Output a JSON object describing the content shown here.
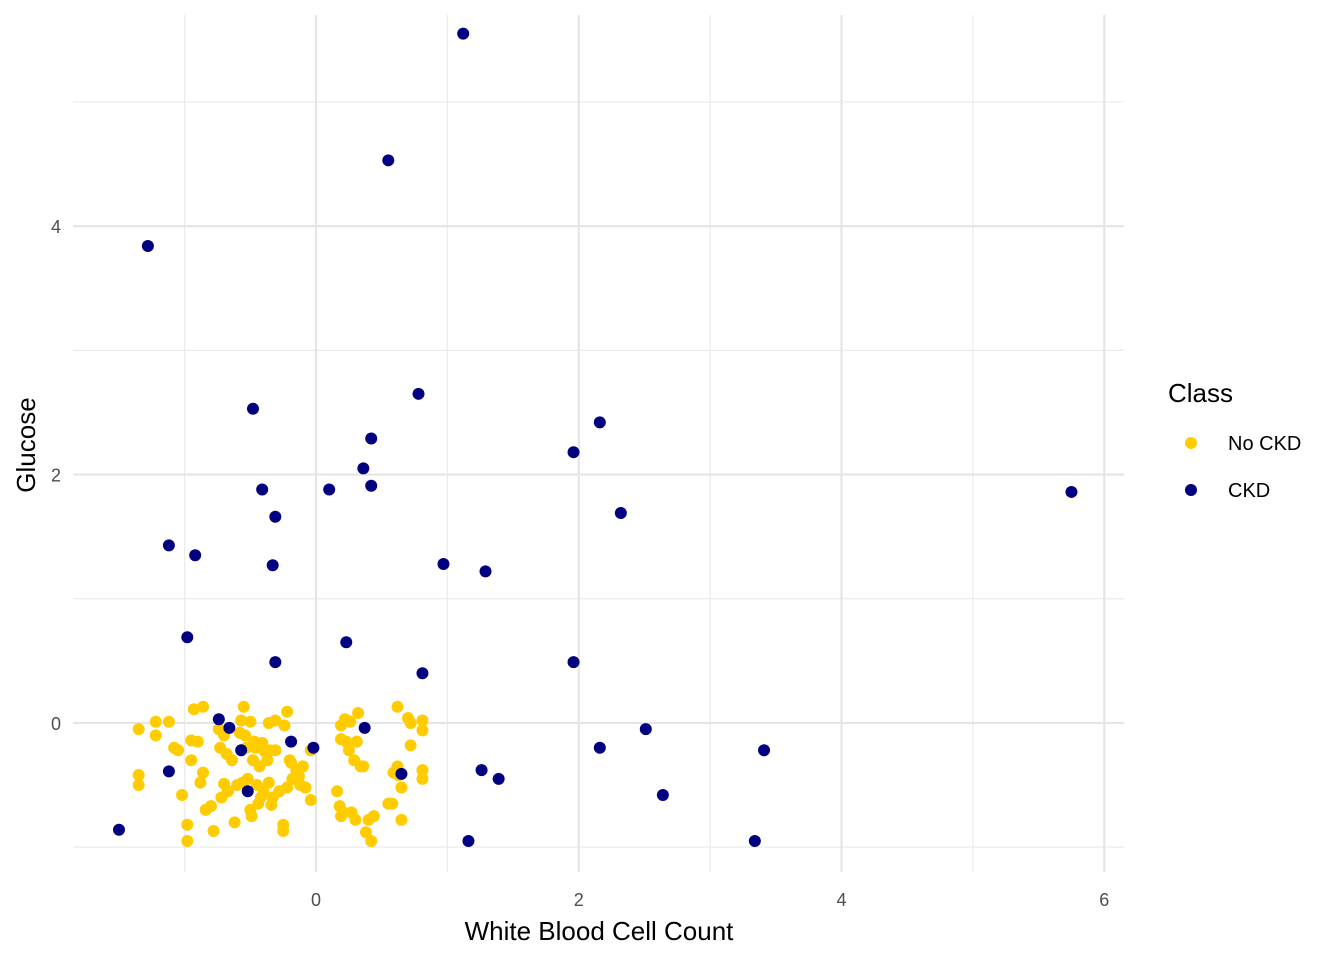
{
  "chart_data": {
    "type": "scatter",
    "title": "",
    "xlabel": "White Blood Cell Count",
    "ylabel": "Glucose",
    "xlim": [
      -1.85,
      6.15
    ],
    "ylim": [
      -1.2,
      5.7
    ],
    "x_ticks": [
      0,
      2,
      4,
      6
    ],
    "x_tick_labels": [
      "0",
      "2",
      "4",
      "6"
    ],
    "y_ticks": [
      0,
      2,
      4
    ],
    "y_tick_labels": [
      "0",
      "2",
      "4"
    ],
    "grid": true,
    "legend": {
      "title": "Class",
      "placement": "right"
    },
    "series": [
      {
        "name": "No CKD",
        "color": "#FFCC00",
        "points": [
          [
            -1.35,
            -0.05
          ],
          [
            -1.35,
            -0.42
          ],
          [
            -1.35,
            -0.5
          ],
          [
            -1.22,
            0.01
          ],
          [
            -1.22,
            -0.1
          ],
          [
            -1.12,
            0.01
          ],
          [
            -1.08,
            -0.2
          ],
          [
            -1.05,
            -0.22
          ],
          [
            -1.02,
            -0.58
          ],
          [
            -0.98,
            -0.82
          ],
          [
            -0.98,
            -0.95
          ],
          [
            -0.95,
            -0.14
          ],
          [
            -0.95,
            -0.3
          ],
          [
            -0.93,
            0.11
          ],
          [
            -0.9,
            -0.15
          ],
          [
            -0.88,
            -0.48
          ],
          [
            -0.86,
            0.13
          ],
          [
            -0.86,
            -0.4
          ],
          [
            -0.84,
            -0.7
          ],
          [
            -0.8,
            -0.67
          ],
          [
            -0.78,
            -0.87
          ],
          [
            -0.74,
            -0.05
          ],
          [
            -0.73,
            -0.2
          ],
          [
            -0.72,
            -0.6
          ],
          [
            -0.7,
            -0.1
          ],
          [
            -0.7,
            -0.49
          ],
          [
            -0.68,
            -0.25
          ],
          [
            -0.67,
            -0.55
          ],
          [
            -0.64,
            -0.3
          ],
          [
            -0.62,
            -0.8
          ],
          [
            -0.6,
            -0.5
          ],
          [
            -0.58,
            -0.08
          ],
          [
            -0.57,
            0.02
          ],
          [
            -0.56,
            -0.48
          ],
          [
            -0.55,
            0.13
          ],
          [
            -0.54,
            -0.1
          ],
          [
            -0.53,
            -0.2
          ],
          [
            -0.52,
            -0.45
          ],
          [
            -0.5,
            0.01
          ],
          [
            -0.5,
            -0.7
          ],
          [
            -0.49,
            -0.75
          ],
          [
            -0.48,
            -0.3
          ],
          [
            -0.47,
            -0.15
          ],
          [
            -0.46,
            -0.2
          ],
          [
            -0.45,
            -0.5
          ],
          [
            -0.44,
            -0.65
          ],
          [
            -0.43,
            -0.35
          ],
          [
            -0.42,
            -0.6
          ],
          [
            -0.41,
            -0.16
          ],
          [
            -0.4,
            -0.55
          ],
          [
            -0.39,
            -0.23
          ],
          [
            -0.37,
            -0.3
          ],
          [
            -0.36,
            -0.48
          ],
          [
            -0.36,
            -0.0
          ],
          [
            -0.35,
            -0.22
          ],
          [
            -0.34,
            -0.66
          ],
          [
            -0.33,
            -0.6
          ],
          [
            -0.31,
            0.02
          ],
          [
            -0.31,
            -0.22
          ],
          [
            -0.28,
            -0.55
          ],
          [
            -0.25,
            -0.82
          ],
          [
            -0.25,
            -0.87
          ],
          [
            -0.24,
            -0.02
          ],
          [
            -0.22,
            -0.52
          ],
          [
            -0.22,
            0.09
          ],
          [
            -0.2,
            -0.3
          ],
          [
            -0.19,
            -0.32
          ],
          [
            -0.18,
            -0.45
          ],
          [
            -0.15,
            -0.38
          ],
          [
            -0.13,
            -0.43
          ],
          [
            -0.12,
            -0.5
          ],
          [
            -0.1,
            -0.35
          ],
          [
            -0.08,
            -0.52
          ],
          [
            -0.04,
            -0.62
          ],
          [
            -0.04,
            -0.22
          ],
          [
            0.16,
            -0.55
          ],
          [
            0.18,
            -0.67
          ],
          [
            0.19,
            -0.13
          ],
          [
            0.19,
            -0.75
          ],
          [
            0.19,
            -0.02
          ],
          [
            0.21,
            -0.72
          ],
          [
            0.22,
            0.03
          ],
          [
            0.23,
            -0.15
          ],
          [
            0.25,
            -0.22
          ],
          [
            0.26,
            0.01
          ],
          [
            0.27,
            -0.72
          ],
          [
            0.29,
            -0.3
          ],
          [
            0.3,
            -0.78
          ],
          [
            0.31,
            -0.15
          ],
          [
            0.32,
            0.08
          ],
          [
            0.34,
            -0.35
          ],
          [
            0.36,
            -0.35
          ],
          [
            0.38,
            -0.88
          ],
          [
            0.4,
            -0.78
          ],
          [
            0.42,
            -0.95
          ],
          [
            0.44,
            -0.75
          ],
          [
            0.55,
            -0.65
          ],
          [
            0.58,
            -0.65
          ],
          [
            0.59,
            -0.4
          ],
          [
            0.62,
            0.13
          ],
          [
            0.62,
            -0.35
          ],
          [
            0.63,
            -0.42
          ],
          [
            0.65,
            -0.78
          ],
          [
            0.65,
            -0.52
          ],
          [
            0.7,
            0.04
          ],
          [
            0.72,
            -0.18
          ],
          [
            0.72,
            -0.0
          ],
          [
            0.81,
            0.02
          ],
          [
            0.81,
            -0.06
          ],
          [
            0.81,
            -0.38
          ],
          [
            0.81,
            -0.45
          ]
        ]
      },
      {
        "name": "CKD",
        "color": "#000080",
        "points": [
          [
            -1.5,
            -0.86
          ],
          [
            -1.28,
            3.84
          ],
          [
            -1.12,
            1.43
          ],
          [
            -1.12,
            -0.39
          ],
          [
            -0.98,
            0.69
          ],
          [
            -0.92,
            1.35
          ],
          [
            -0.74,
            0.03
          ],
          [
            -0.66,
            -0.04
          ],
          [
            -0.57,
            -0.22
          ],
          [
            -0.52,
            -0.55
          ],
          [
            -0.48,
            2.53
          ],
          [
            -0.41,
            1.88
          ],
          [
            -0.33,
            1.27
          ],
          [
            -0.31,
            1.66
          ],
          [
            -0.31,
            0.49
          ],
          [
            -0.19,
            -0.15
          ],
          [
            -0.02,
            -0.2
          ],
          [
            0.1,
            1.88
          ],
          [
            0.23,
            0.65
          ],
          [
            0.36,
            2.05
          ],
          [
            0.37,
            -0.04
          ],
          [
            0.42,
            2.29
          ],
          [
            0.42,
            1.91
          ],
          [
            0.55,
            4.53
          ],
          [
            0.65,
            -0.41
          ],
          [
            0.78,
            2.65
          ],
          [
            0.81,
            0.4
          ],
          [
            0.97,
            1.28
          ],
          [
            1.12,
            5.55
          ],
          [
            1.16,
            -0.95
          ],
          [
            1.26,
            -0.38
          ],
          [
            1.29,
            1.22
          ],
          [
            1.39,
            -0.45
          ],
          [
            1.96,
            2.18
          ],
          [
            1.96,
            0.49
          ],
          [
            2.16,
            2.42
          ],
          [
            2.16,
            -0.2
          ],
          [
            2.32,
            1.69
          ],
          [
            2.51,
            -0.05
          ],
          [
            2.64,
            -0.58
          ],
          [
            3.34,
            -0.95
          ],
          [
            3.41,
            -0.22
          ],
          [
            5.75,
            1.86
          ]
        ]
      }
    ]
  }
}
